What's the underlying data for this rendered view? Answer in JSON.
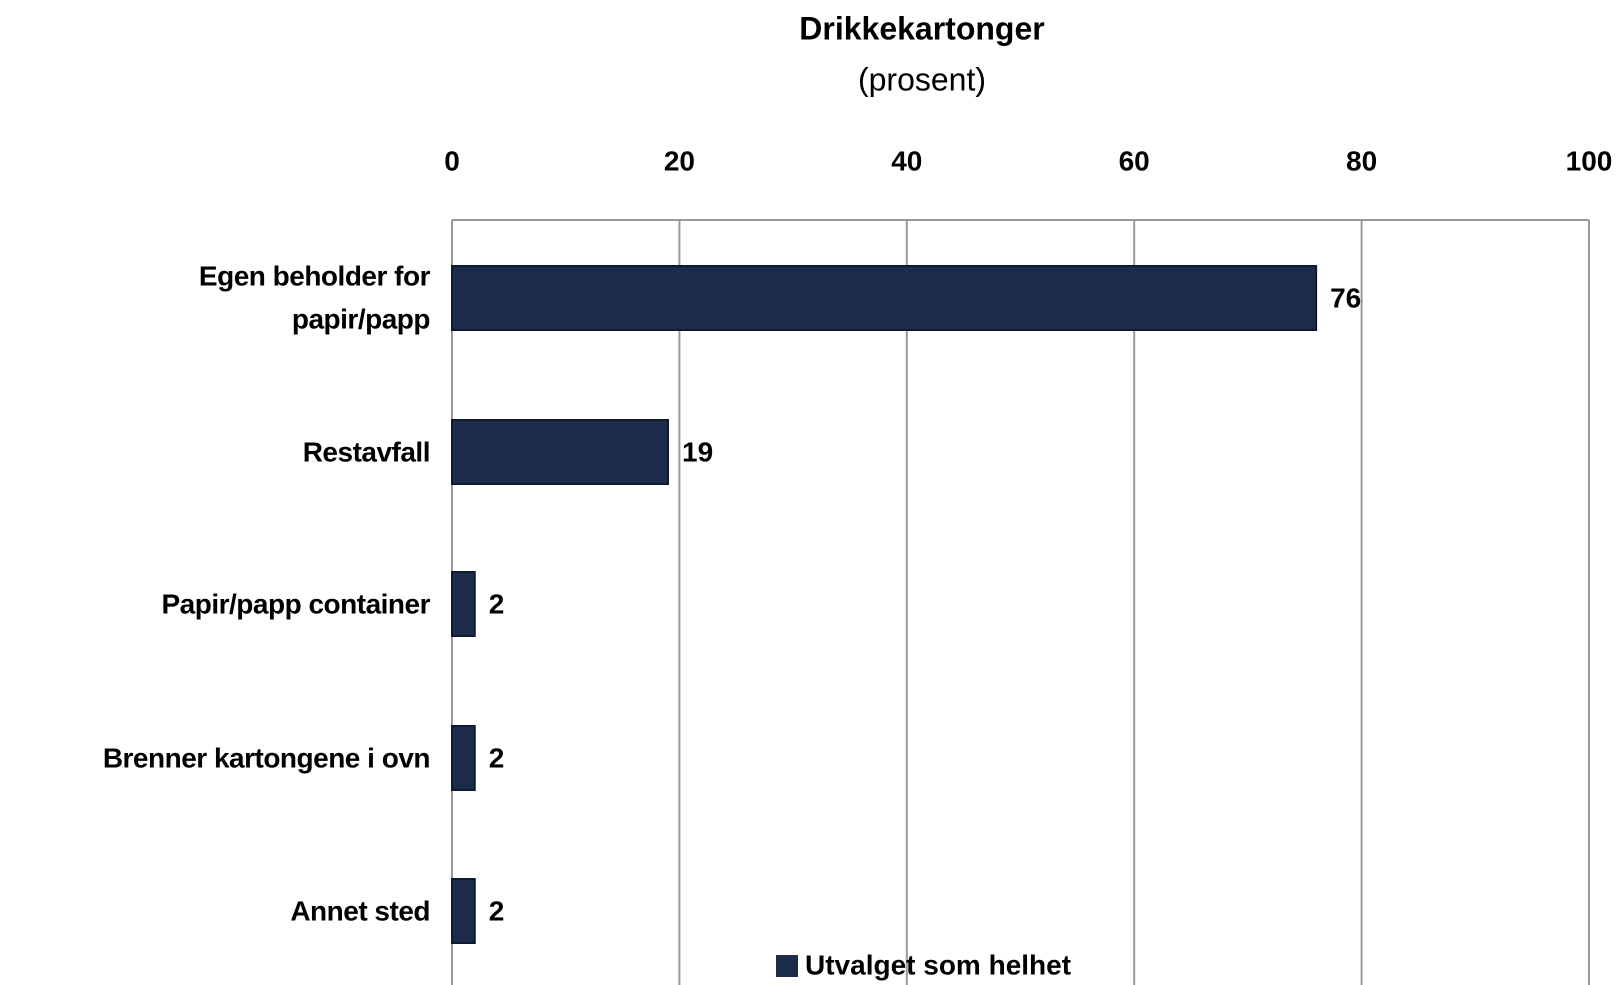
{
  "chart_data": {
    "type": "bar",
    "orientation": "horizontal",
    "title": "Drikkekartonger",
    "subtitle": "(prosent)",
    "categories": [
      "Egen beholder for\npapir/papp",
      "Restavfall",
      "Papir/papp container",
      "Brenner kartongene i ovn",
      "Annet sted"
    ],
    "series": [
      {
        "name": "Utvalget som helhet",
        "color": "#1b2d4a",
        "values": [
          76,
          19,
          2,
          2,
          2
        ]
      }
    ],
    "xlim": [
      0,
      100
    ],
    "xticks": [
      0,
      20,
      40,
      60,
      80,
      100
    ],
    "grid": true,
    "legend": "bottom"
  }
}
